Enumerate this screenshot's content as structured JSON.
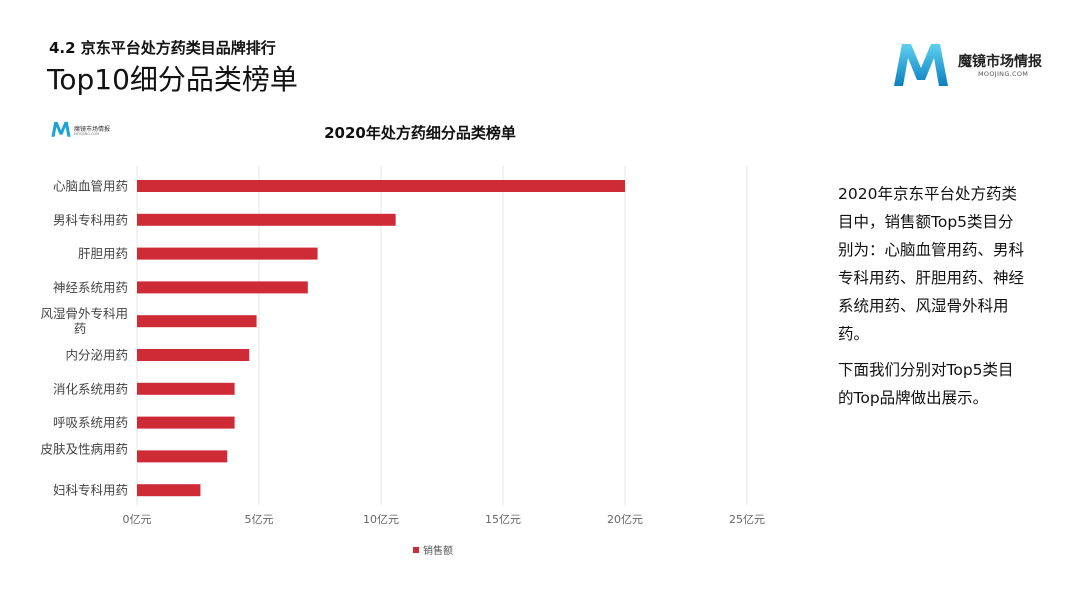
{
  "header": {
    "section_title": "4.2 京东平台处方药类目品牌排行",
    "main_title": "Top10细分品类榜单"
  },
  "brand": {
    "name": "魔镜市场情报",
    "url": "MOOJING.COM",
    "logo_letter": "M"
  },
  "chart_logo": {
    "name": "魔镜市场情报",
    "url": "MOOJING.COM"
  },
  "description": {
    "paragraph1": "2020年京东平台处方药类目中，销售额Top5类目分别为：心脑血管用药、男科专科用药、肝胆用药、神经系统用药、风湿骨外科用药。",
    "paragraph2": "下面我们分别对Top5类目的Top品牌做出展示。"
  },
  "colors": {
    "bar": "#cf2b36",
    "grid": "#e6e6e6",
    "brand_blue": "#1aa3d8"
  },
  "chart_data": {
    "type": "bar",
    "orientation": "horizontal",
    "title": "2020年处方药细分品类榜单",
    "categories": [
      "心脑血管用药",
      "男科专科用药",
      "肝胆用药",
      "神经系统用药",
      "风湿骨外专科用药",
      "内分泌用药",
      "消化系统用药",
      "呼吸系统用药",
      "皮肤及性病用药",
      "妇科专科用药"
    ],
    "series": [
      {
        "name": "销售额",
        "values": [
          20.0,
          10.6,
          7.4,
          7.0,
          4.9,
          4.6,
          4.0,
          4.0,
          3.7,
          2.6
        ]
      }
    ],
    "xlim": [
      0,
      25
    ],
    "x_ticks": [
      0,
      5,
      10,
      15,
      20,
      25
    ],
    "x_tick_labels": [
      "0亿元",
      "5亿元",
      "10亿元",
      "15亿元",
      "20亿元",
      "25亿元"
    ],
    "grid": true,
    "legend_position": "bottom"
  }
}
